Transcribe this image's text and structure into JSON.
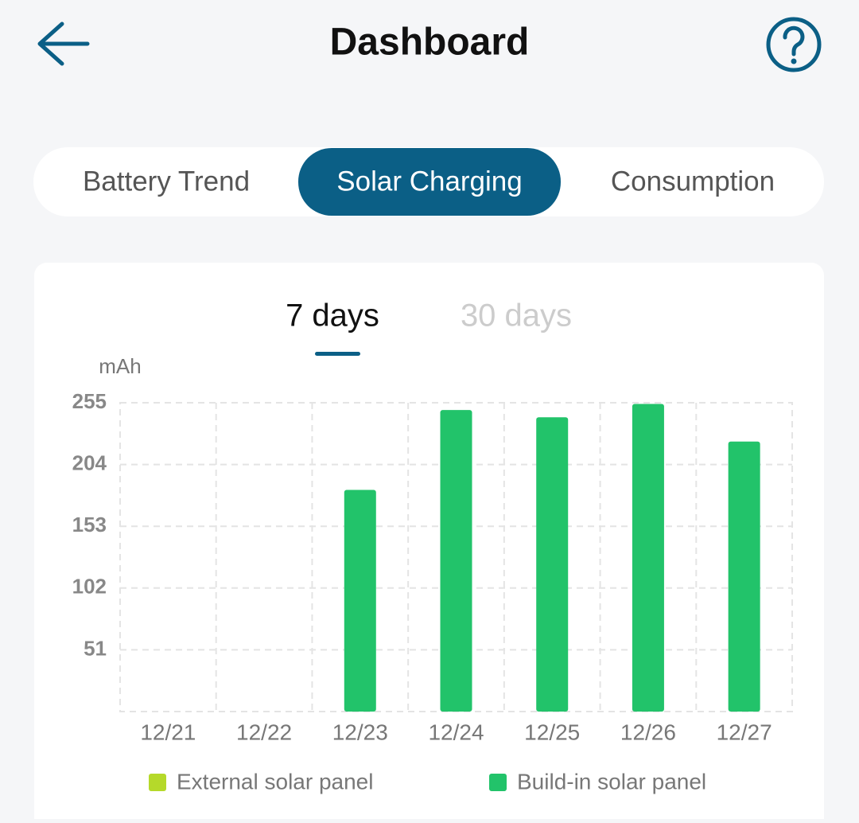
{
  "header": {
    "title": "Dashboard"
  },
  "tabs": [
    "Battery Trend",
    "Solar Charging",
    "Consumption"
  ],
  "periods": [
    "7 days",
    "30 days"
  ],
  "chart_data": {
    "type": "bar",
    "y_label": "mAh",
    "categories": [
      "12/21",
      "12/22",
      "12/23",
      "12/24",
      "12/25",
      "12/26",
      "12/27"
    ],
    "series": [
      {
        "name": "External solar panel",
        "color": "#b5d92a",
        "values": [
          0,
          0,
          0,
          0,
          0,
          0,
          0
        ]
      },
      {
        "name": "Build-in solar panel",
        "color": "#22c36a",
        "values": [
          0,
          0,
          183,
          249,
          243,
          254,
          223
        ]
      }
    ],
    "stacked": true,
    "ylim": [
      0,
      255
    ],
    "yticks": [
      51,
      102,
      153,
      204,
      255
    ],
    "grid": true
  }
}
